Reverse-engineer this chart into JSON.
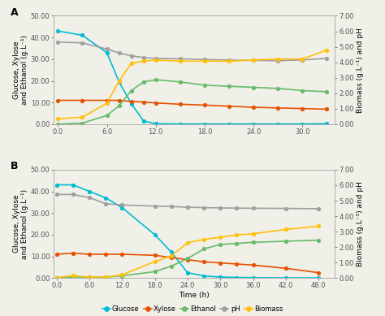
{
  "panel_A": {
    "glucose": {
      "x": [
        0.0,
        3.0,
        6.0,
        7.5,
        9.0,
        10.5,
        12.0,
        15.0,
        18.0,
        21.0,
        24.0,
        27.0,
        30.0,
        33.0
      ],
      "y": [
        43.0,
        41.0,
        33.0,
        19.5,
        9.5,
        1.5,
        0.2,
        0.1,
        0.1,
        0.1,
        0.1,
        0.1,
        0.1,
        0.2
      ]
    },
    "xylose": {
      "x": [
        0.0,
        3.0,
        6.0,
        7.5,
        9.0,
        10.5,
        12.0,
        15.0,
        18.0,
        21.0,
        24.0,
        27.0,
        30.0,
        33.0
      ],
      "y": [
        11.0,
        11.0,
        11.0,
        11.0,
        10.5,
        10.2,
        9.8,
        9.2,
        8.8,
        8.3,
        7.8,
        7.5,
        7.2,
        6.9
      ]
    },
    "ethanol": {
      "x": [
        0.0,
        3.0,
        6.0,
        7.5,
        9.0,
        10.5,
        12.0,
        15.0,
        18.0,
        21.0,
        24.0,
        27.0,
        30.0,
        33.0
      ],
      "y": [
        0.0,
        0.5,
        4.0,
        8.5,
        15.5,
        19.5,
        20.5,
        19.5,
        18.0,
        17.5,
        17.0,
        16.5,
        15.5,
        15.0
      ]
    },
    "pH": {
      "x": [
        0.0,
        3.0,
        6.0,
        7.5,
        9.0,
        10.5,
        12.0,
        15.0,
        18.0,
        21.0,
        24.0,
        27.0,
        30.0,
        33.0
      ],
      "y": [
        5.3,
        5.25,
        4.85,
        4.6,
        4.42,
        4.3,
        4.25,
        4.22,
        4.18,
        4.14,
        4.12,
        4.1,
        4.15,
        4.25
      ]
    },
    "biomass": {
      "x": [
        0.0,
        3.0,
        6.0,
        7.5,
        9.0,
        10.5,
        12.0,
        15.0,
        18.0,
        21.0,
        24.0,
        27.0,
        30.0,
        33.0
      ],
      "y": [
        0.35,
        0.45,
        1.35,
        2.79,
        3.93,
        4.07,
        4.14,
        4.07,
        4.07,
        4.07,
        4.14,
        4.21,
        4.21,
        4.79
      ]
    }
  },
  "panel_B": {
    "glucose": {
      "x": [
        0.0,
        3.0,
        6.0,
        9.0,
        12.0,
        18.0,
        21.0,
        24.0,
        27.0,
        30.0,
        33.0,
        36.0,
        42.0,
        48.0
      ],
      "y": [
        43.0,
        43.0,
        40.0,
        37.0,
        32.5,
        20.0,
        12.0,
        2.5,
        1.0,
        0.5,
        0.3,
        0.2,
        0.1,
        0.1
      ]
    },
    "xylose": {
      "x": [
        0.0,
        3.0,
        6.0,
        9.0,
        12.0,
        18.0,
        21.0,
        24.0,
        27.0,
        30.0,
        33.0,
        36.0,
        42.0,
        48.0
      ],
      "y": [
        11.0,
        11.5,
        11.0,
        11.0,
        11.0,
        10.5,
        9.5,
        8.5,
        7.5,
        7.0,
        6.5,
        6.0,
        4.5,
        2.5
      ]
    },
    "ethanol": {
      "x": [
        0.0,
        3.0,
        6.0,
        9.0,
        12.0,
        18.0,
        21.0,
        24.0,
        27.0,
        30.0,
        33.0,
        36.0,
        42.0,
        48.0
      ],
      "y": [
        0.0,
        0.5,
        0.5,
        0.5,
        1.0,
        3.0,
        5.5,
        9.0,
        13.5,
        15.5,
        16.0,
        16.5,
        17.0,
        17.5
      ]
    },
    "pH": {
      "x": [
        0.0,
        3.0,
        6.0,
        9.0,
        12.0,
        18.0,
        21.0,
        24.0,
        27.0,
        30.0,
        33.0,
        36.0,
        42.0,
        48.0
      ],
      "y": [
        5.4,
        5.4,
        5.2,
        4.8,
        4.72,
        4.65,
        4.62,
        4.58,
        4.55,
        4.53,
        4.52,
        4.51,
        4.5,
        4.48
      ]
    },
    "biomass": {
      "x": [
        0.0,
        3.0,
        6.0,
        9.0,
        12.0,
        18.0,
        21.0,
        24.0,
        27.0,
        30.0,
        33.0,
        36.0,
        42.0,
        48.0
      ],
      "y": [
        0.03,
        0.16,
        0.06,
        0.07,
        0.21,
        1.07,
        1.43,
        2.29,
        2.5,
        2.64,
        2.79,
        2.86,
        3.14,
        3.36
      ]
    }
  },
  "colors": {
    "glucose": "#00bcd4",
    "xylose": "#e65100",
    "ethanol": "#66bb6a",
    "pH": "#9e9e9e",
    "biomass": "#ffc107"
  },
  "ylim_left": [
    0,
    50
  ],
  "ylim_right": [
    0,
    7.0
  ],
  "yticks_left": [
    0.0,
    10.0,
    20.0,
    30.0,
    40.0,
    50.0
  ],
  "yticks_right": [
    0.0,
    1.0,
    2.0,
    3.0,
    4.0,
    5.0,
    6.0,
    7.0
  ],
  "xlim_A": [
    -0.5,
    34
  ],
  "xlim_B": [
    -0.5,
    51
  ],
  "xticks_A": [
    0.0,
    6.0,
    12.0,
    18.0,
    24.0,
    30.0
  ],
  "xticks_B": [
    0.0,
    6.0,
    12.0,
    18.0,
    24.0,
    30.0,
    36.0,
    42.0,
    48.0
  ],
  "ylabel_left": "Glucose, Xylose\nand Ethanol (g.L⁻¹)",
  "ylabel_right": "Biomass (g.L⁻¹) and pH",
  "xlabel": "Time (h)",
  "legend_labels": [
    "Glucose",
    "Xylose",
    "Ethanol",
    "pH",
    "Biomass"
  ],
  "bg_color": "#f0efe8",
  "spine_color": "#aaaaaa",
  "tick_label_size": 6,
  "axis_label_size": 6.5,
  "legend_fontsize": 6,
  "linewidth": 1.2,
  "markersize": 3.5
}
